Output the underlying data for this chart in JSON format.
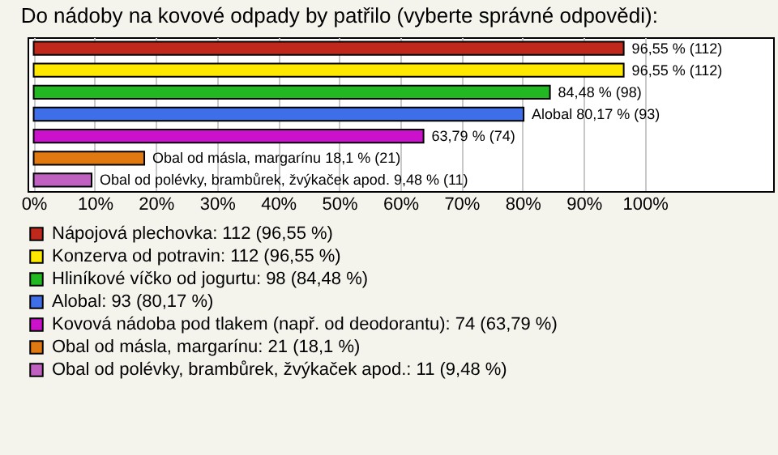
{
  "chart_data": {
    "type": "bar",
    "orientation": "horizontal",
    "title": "Do nádoby na kovové odpady by patřilo (vyberte správné odpovědi):",
    "categories": [
      null
    ],
    "series": [
      {
        "name": "Nápojová plechovka: 112 (96,55 %)",
        "color": "#c0281c",
        "values": [
          96.55
        ],
        "value_labels": [
          "96,55 % (112)"
        ]
      },
      {
        "name": "Konzerva od potravin: 112 (96,55 %)",
        "color": "#ffe800",
        "values": [
          96.55
        ],
        "value_labels": [
          "96,55 % (112)"
        ]
      },
      {
        "name": "Hliníkové víčko od jogurtu: 98 (84,48 %)",
        "color": "#22b822",
        "values": [
          84.48
        ],
        "value_labels": [
          "84,48 % (98)"
        ]
      },
      {
        "name": "Alobal: 93 (80,17 %)",
        "color": "#3f6fe8",
        "values": [
          80.17
        ],
        "value_labels": [
          "Alobal 80,17 % (93)"
        ]
      },
      {
        "name": "Kovová nádoba pod tlakem (např. od deodorantu): 74 (63,79 %)",
        "color": "#cc11cc",
        "values": [
          63.79
        ],
        "value_labels": [
          "63,79 % (74)"
        ]
      },
      {
        "name": "Obal od másla, margarínu: 21 (18,1 %)",
        "color": "#e07a10",
        "values": [
          18.1
        ],
        "value_labels": [
          "Obal od másla, margarínu 18,1 % (21)"
        ]
      },
      {
        "name": "Obal od polévky, brambůrek, žvýkaček apod.: 11 (9,48 %)",
        "color": "#c060c0",
        "values": [
          9.48
        ],
        "value_labels": [
          "Obal od polévky, brambůrek, žvýkaček apod. 9,48 % (11)"
        ]
      }
    ],
    "xlim": [
      -1,
      121
    ],
    "xticks": [
      {
        "value": 0,
        "label": "0%"
      },
      {
        "value": 10,
        "label": "10%"
      },
      {
        "value": 20,
        "label": "20%"
      },
      {
        "value": 30,
        "label": "30%"
      },
      {
        "value": 40,
        "label": "40%"
      },
      {
        "value": 50,
        "label": "50%"
      },
      {
        "value": 60,
        "label": "60%"
      },
      {
        "value": 70,
        "label": "70%"
      },
      {
        "value": 80,
        "label": "80%"
      },
      {
        "value": 90,
        "label": "90%"
      },
      {
        "value": 100,
        "label": "100%"
      }
    ],
    "grid": "x",
    "legend": "bottom",
    "tick_labels": "x"
  }
}
